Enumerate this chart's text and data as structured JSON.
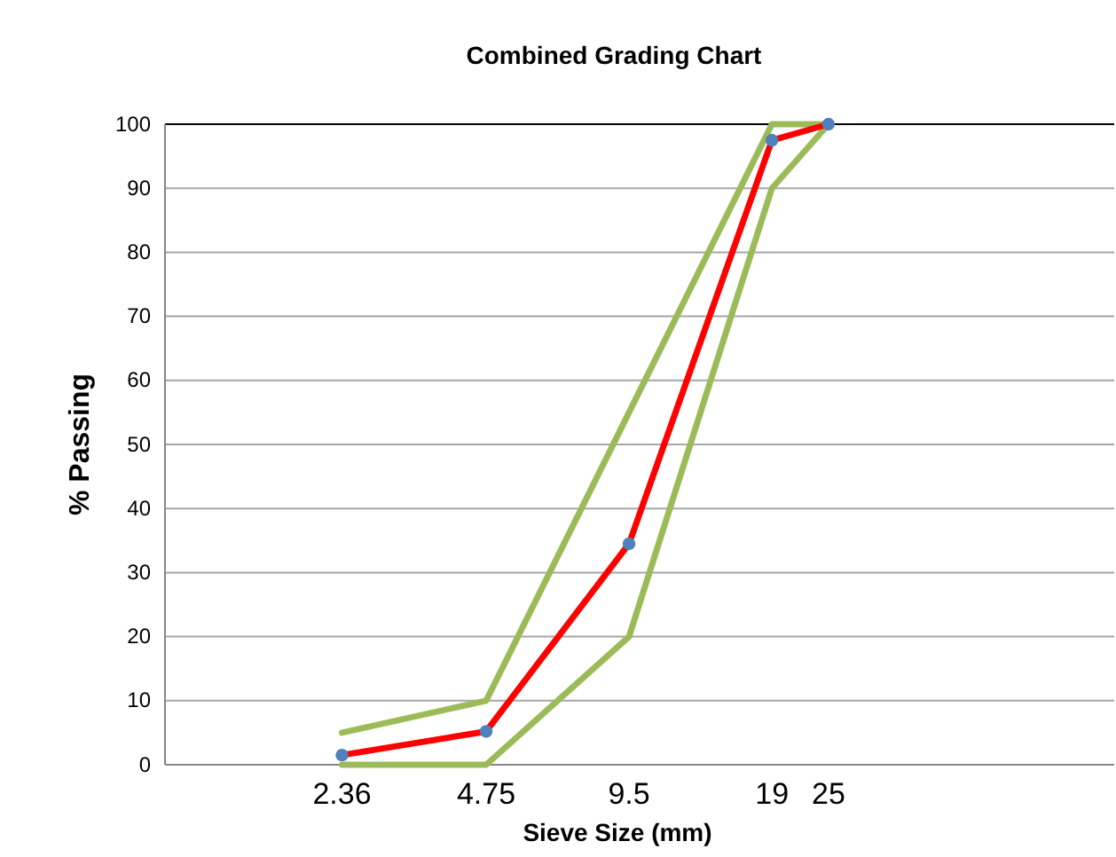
{
  "chart_data": {
    "type": "line",
    "title": "Combined Grading Chart",
    "xlabel": "Sieve Size (mm)",
    "ylabel": "% Passing",
    "log": "x",
    "xlim": [
      1,
      100
    ],
    "xticks": [
      2.36,
      4.75,
      9.5,
      19,
      25
    ],
    "ylim": [
      0,
      100
    ],
    "yticks": [
      0,
      10,
      20,
      30,
      40,
      50,
      60,
      70,
      80,
      90,
      100
    ],
    "grid": "y",
    "series": [
      {
        "color": "#9bbb59",
        "x": [
          2.36,
          4.75,
          9.5,
          19,
          25
        ],
        "values": [
          5,
          10,
          55,
          100,
          100
        ]
      },
      {
        "color": "#9bbb59",
        "x": [
          2.36,
          4.75,
          9.5,
          19,
          25
        ],
        "values": [
          0,
          0,
          20,
          90,
          100
        ]
      },
      {
        "color": "#ff0000",
        "x": [
          2.36,
          4.75,
          9.5,
          19,
          25
        ],
        "values": [
          1.5,
          5.2,
          34.5,
          97.5,
          100
        ]
      },
      {
        "type": "scatter",
        "color": "#4f81bd",
        "x": [
          2.36,
          4.75,
          9.5,
          19,
          25
        ],
        "values": [
          1.5,
          5.2,
          34.5,
          97.5,
          100
        ]
      }
    ]
  }
}
